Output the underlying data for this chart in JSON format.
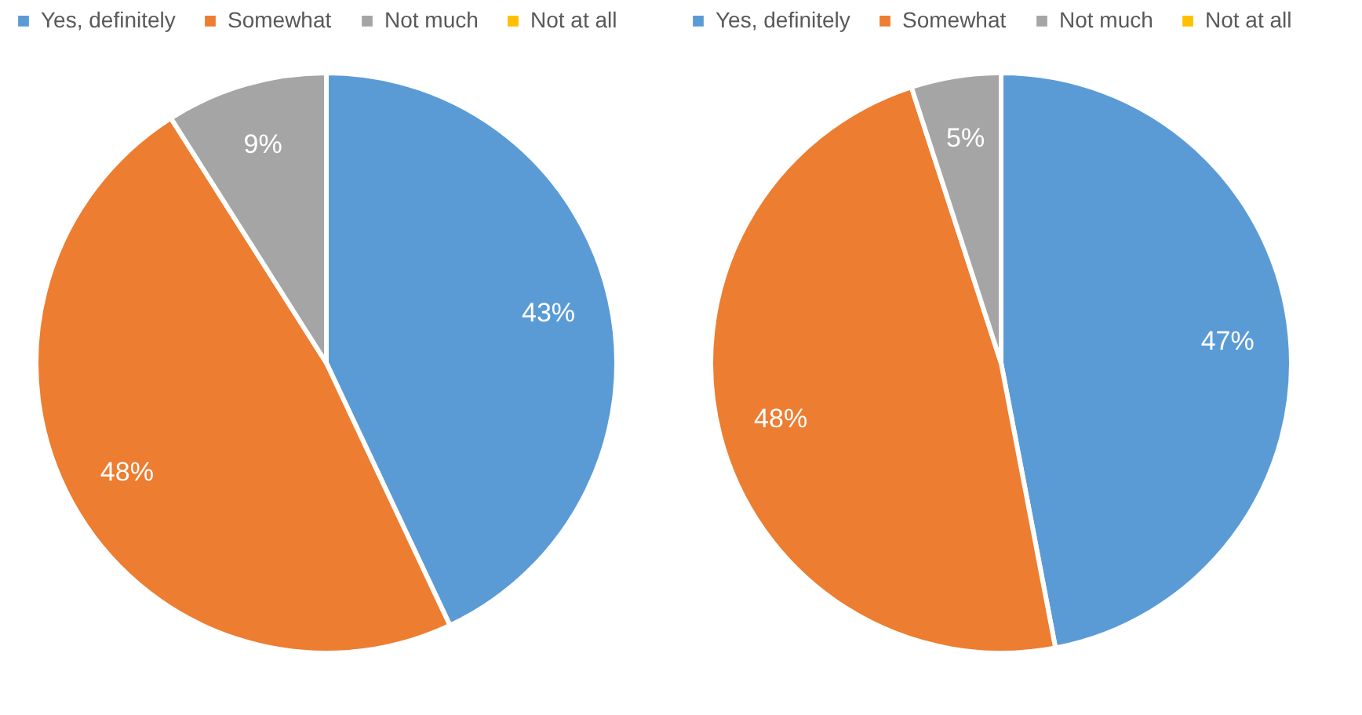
{
  "chart_data": [
    {
      "type": "pie",
      "categories": [
        "Yes, definitely",
        "Somewhat",
        "Not much",
        "Not at all"
      ],
      "values": [
        43,
        48,
        9,
        0
      ],
      "value_labels": [
        "43%",
        "48%",
        "9%",
        null
      ],
      "colors": [
        "#5b9bd5",
        "#ed7d31",
        "#a5a5a5",
        "#ffc000"
      ],
      "legend": "top"
    },
    {
      "type": "pie",
      "categories": [
        "Yes, definitely",
        "Somewhat",
        "Not much",
        "Not at all"
      ],
      "values": [
        47,
        48,
        5,
        0
      ],
      "value_labels": [
        "47%",
        "48%",
        "5%",
        null
      ],
      "colors": [
        "#5b9bd5",
        "#ed7d31",
        "#a5a5a5",
        "#ffc000"
      ],
      "legend": "top"
    }
  ]
}
